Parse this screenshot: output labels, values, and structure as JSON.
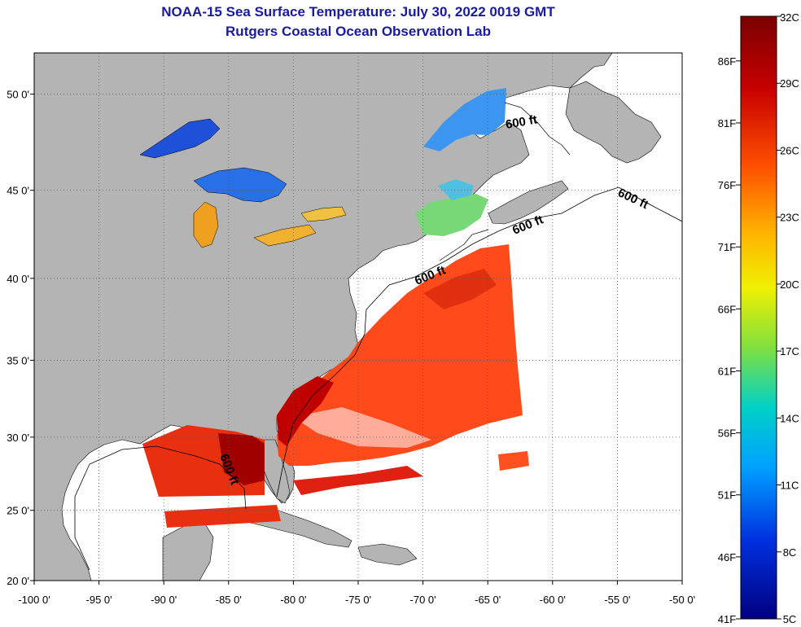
{
  "title": {
    "line1": "NOAA-15 Sea Surface Temperature:  July 30, 2022 0019 GMT",
    "line2": "Rutgers Coastal Ocean Observation Lab"
  },
  "map": {
    "lat_labels": [
      "50 0'",
      "45 0'",
      "40 0'",
      "35 0'",
      "30 0'",
      "25 0'",
      "20 0'"
    ],
    "lon_labels": [
      "-100 0'",
      "-95 0'",
      "-90 0'",
      "-85 0'",
      "-80 0'",
      "-75 0'",
      "-70 0'",
      "-65 0'",
      "-60 0'",
      "-55 0'",
      "-50 0'"
    ],
    "lon_range": [
      -100,
      -50
    ],
    "lat_range": [
      20,
      52
    ],
    "contour_label": "600 ft",
    "land_color": "#b4b4b4",
    "ocean_color": "#ffffff"
  },
  "colorbar": {
    "celsius_labels": [
      "32C",
      "29C",
      "26C",
      "23C",
      "20C",
      "17C",
      "14C",
      "11C",
      "8C",
      "5C"
    ],
    "fahrenheit_labels": [
      "86F",
      "81F",
      "76F",
      "71F",
      "66F",
      "61F",
      "56F",
      "51F",
      "46F",
      "41F"
    ],
    "range_c": [
      5,
      32
    ]
  }
}
